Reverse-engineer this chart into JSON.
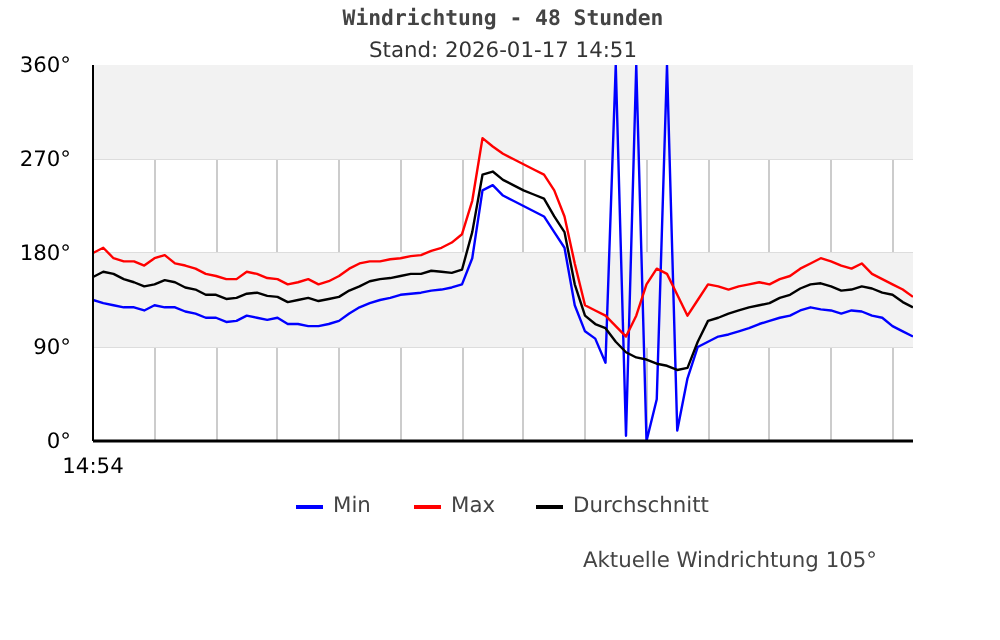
{
  "chart_data": {
    "type": "line",
    "title": "Windrichtung - 48 Stunden",
    "subtitle": "Stand: 2026-01-17 14:51",
    "categories": [
      null,
      null,
      null,
      null,
      null,
      null,
      null,
      null,
      null,
      null,
      null,
      null,
      null,
      null,
      null,
      null,
      null,
      null,
      null,
      null,
      null,
      null,
      null,
      null,
      null,
      null,
      null,
      null,
      null,
      null,
      null,
      null,
      null,
      null,
      null,
      null,
      null,
      null,
      null,
      null,
      null,
      null,
      null,
      null,
      null,
      null,
      null,
      null,
      null,
      null,
      null,
      null,
      null,
      null,
      null,
      null,
      null,
      null,
      null,
      null,
      null,
      null,
      null,
      null,
      null,
      null,
      null,
      null,
      null,
      null,
      null,
      null,
      null,
      null,
      null,
      null,
      null,
      null,
      null,
      null,
      null
    ],
    "ylim": [
      0,
      360
    ],
    "yticks": [
      {
        "value": 0,
        "label": "0°"
      },
      {
        "value": 90,
        "label": "90°"
      },
      {
        "value": 180,
        "label": "180°"
      },
      {
        "value": 270,
        "label": "270°"
      },
      {
        "value": 360,
        "label": "360°"
      }
    ],
    "series": [
      {
        "name": "Min",
        "color": "#0000ff",
        "values": [
          135,
          132,
          130,
          128,
          128,
          125,
          130,
          128,
          128,
          124,
          122,
          118,
          118,
          114,
          115,
          120,
          118,
          116,
          118,
          112,
          112,
          110,
          110,
          112,
          115,
          122,
          128,
          132,
          135,
          137,
          140,
          141,
          142,
          144,
          145,
          147,
          150,
          175,
          240,
          245,
          235,
          230,
          225,
          220,
          215,
          200,
          185,
          130,
          105,
          98,
          75,
          360,
          5,
          360,
          0,
          40,
          360,
          10,
          60,
          90,
          95,
          100,
          102,
          105,
          108,
          112,
          115,
          118,
          120,
          125,
          128,
          126,
          125,
          122,
          125,
          124,
          120,
          118,
          110,
          105,
          100
        ]
      },
      {
        "name": "Max",
        "color": "#ff0000",
        "values": [
          180,
          185,
          175,
          172,
          172,
          168,
          175,
          178,
          170,
          168,
          165,
          160,
          158,
          155,
          155,
          162,
          160,
          156,
          155,
          150,
          152,
          155,
          150,
          153,
          158,
          165,
          170,
          172,
          172,
          174,
          175,
          177,
          178,
          182,
          185,
          190,
          198,
          230,
          290,
          282,
          275,
          270,
          265,
          260,
          255,
          240,
          215,
          170,
          130,
          125,
          120,
          110,
          100,
          120,
          150,
          165,
          160,
          140,
          120,
          135,
          150,
          148,
          145,
          148,
          150,
          152,
          150,
          155,
          158,
          165,
          170,
          175,
          172,
          168,
          165,
          170,
          160,
          155,
          150,
          145,
          138
        ]
      },
      {
        "name": "Durchschnitt",
        "color": "#000000",
        "values": [
          157,
          162,
          160,
          155,
          152,
          148,
          150,
          154,
          152,
          147,
          145,
          140,
          140,
          136,
          137,
          141,
          142,
          139,
          138,
          133,
          135,
          137,
          134,
          136,
          138,
          144,
          148,
          153,
          155,
          156,
          158,
          160,
          160,
          163,
          162,
          161,
          164,
          200,
          255,
          258,
          250,
          245,
          240,
          236,
          232,
          215,
          200,
          150,
          120,
          112,
          108,
          95,
          85,
          80,
          78,
          74,
          72,
          68,
          70,
          95,
          115,
          118,
          122,
          125,
          128,
          130,
          132,
          137,
          140,
          146,
          150,
          151,
          148,
          144,
          145,
          148,
          146,
          142,
          140,
          133,
          128
        ]
      }
    ],
    "bands": [
      {
        "axis": "y",
        "from": 90,
        "to": 180,
        "color": "#f2f2f2"
      },
      {
        "axis": "y",
        "from": 270,
        "to": 360,
        "color": "#f2f2f2"
      }
    ],
    "grid": true,
    "legend": "bottom",
    "annotations": [
      "14:54",
      "Aktuelle Windrichtung 105°"
    ]
  }
}
